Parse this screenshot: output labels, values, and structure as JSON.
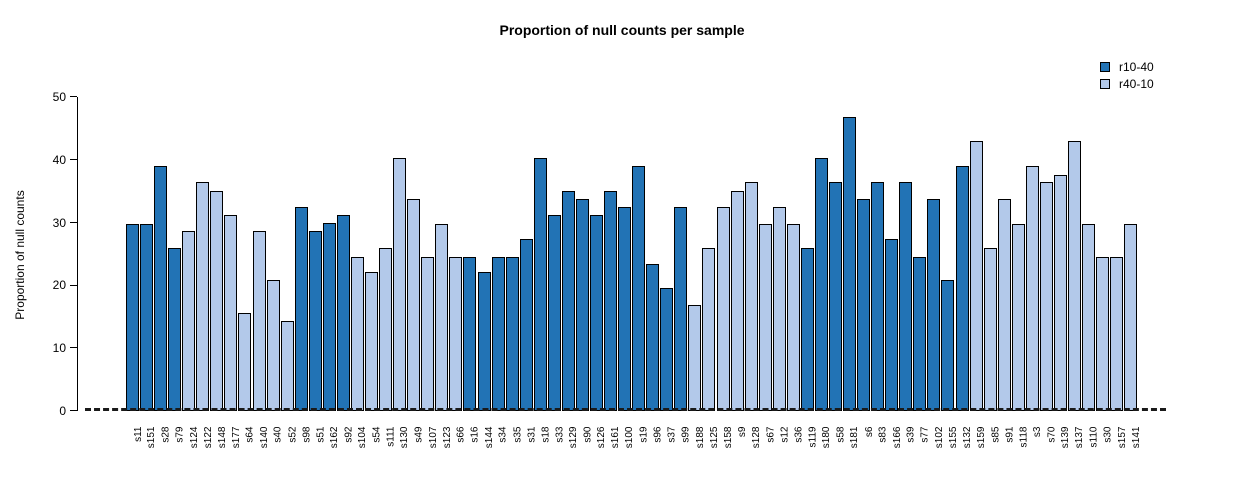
{
  "chart_data": {
    "type": "bar",
    "title": "Proportion of null counts per sample",
    "xlabel": "",
    "ylabel": "Proportion of null counts",
    "ylim": [
      0,
      50
    ],
    "yticks": [
      0,
      10,
      20,
      30,
      40,
      50
    ],
    "grid": false,
    "legend_position": "top-right",
    "legend": [
      {
        "label": "r10-40",
        "color": "#2273b5"
      },
      {
        "label": "r40-10",
        "color": "#b3c9ea"
      }
    ],
    "zero_line": "dashed",
    "categories": [
      "s11",
      "s151",
      "s28",
      "s79",
      "s124",
      "s122",
      "s148",
      "s177",
      "s64",
      "s140",
      "s40",
      "s52",
      "s98",
      "s51",
      "s162",
      "s92",
      "s104",
      "s54",
      "s111",
      "s130",
      "s49",
      "s107",
      "s123",
      "s66",
      "s16",
      "s144",
      "s34",
      "s35",
      "s31",
      "s18",
      "s33",
      "s129",
      "s90",
      "s126",
      "s161",
      "s100",
      "s19",
      "s96",
      "s37",
      "s99",
      "s188",
      "s125",
      "s158",
      "s9",
      "s128",
      "s67",
      "s12",
      "s36",
      "s119",
      "s180",
      "s58",
      "s181",
      "s6",
      "s83",
      "s166",
      "s39",
      "s77",
      "s102",
      "s155",
      "s132",
      "s159",
      "s85",
      "s91",
      "s118",
      "s3",
      "s70",
      "s139",
      "s137",
      "s110",
      "s30",
      "s157",
      "s141"
    ],
    "values": [
      29.8,
      29.8,
      39.0,
      26.0,
      28.6,
      36.4,
      35.0,
      31.2,
      15.6,
      28.6,
      20.8,
      14.3,
      32.5,
      28.6,
      29.9,
      31.2,
      24.5,
      22.1,
      26.0,
      40.2,
      33.8,
      24.5,
      29.8,
      24.5,
      24.5,
      22.1,
      24.5,
      24.5,
      27.3,
      40.2,
      31.2,
      35.0,
      33.8,
      31.2,
      35.0,
      32.5,
      39.0,
      23.4,
      19.6,
      32.5,
      16.9,
      26.0,
      32.5,
      35.0,
      36.4,
      29.8,
      32.5,
      29.8,
      26.0,
      40.2,
      36.4,
      46.8,
      33.8,
      36.4,
      27.3,
      36.4,
      24.5,
      33.8,
      20.8,
      39.0,
      42.9,
      26.0,
      33.8,
      29.8,
      39.0,
      36.4,
      37.6,
      42.9,
      29.8,
      24.5,
      24.5,
      29.8
    ],
    "groups": [
      "r10-40",
      "r10-40",
      "r10-40",
      "r10-40",
      "r40-10",
      "r40-10",
      "r40-10",
      "r40-10",
      "r40-10",
      "r40-10",
      "r40-10",
      "r40-10",
      "r10-40",
      "r10-40",
      "r10-40",
      "r10-40",
      "r40-10",
      "r40-10",
      "r40-10",
      "r40-10",
      "r40-10",
      "r40-10",
      "r40-10",
      "r40-10",
      "r10-40",
      "r10-40",
      "r10-40",
      "r10-40",
      "r10-40",
      "r10-40",
      "r10-40",
      "r10-40",
      "r10-40",
      "r10-40",
      "r10-40",
      "r10-40",
      "r10-40",
      "r10-40",
      "r10-40",
      "r10-40",
      "r40-10",
      "r40-10",
      "r40-10",
      "r40-10",
      "r40-10",
      "r40-10",
      "r40-10",
      "r40-10",
      "r10-40",
      "r10-40",
      "r10-40",
      "r10-40",
      "r10-40",
      "r10-40",
      "r10-40",
      "r10-40",
      "r10-40",
      "r10-40",
      "r10-40",
      "r10-40",
      "r40-10",
      "r40-10",
      "r40-10",
      "r40-10",
      "r40-10",
      "r40-10",
      "r40-10",
      "r40-10",
      "r40-10",
      "r40-10",
      "r40-10",
      "r40-10"
    ]
  },
  "colors": {
    "bar_dark": "#2273b5",
    "bar_light": "#b3c9ea",
    "bar_border": "#000000",
    "axis": "#000000",
    "background": "#ffffff"
  }
}
